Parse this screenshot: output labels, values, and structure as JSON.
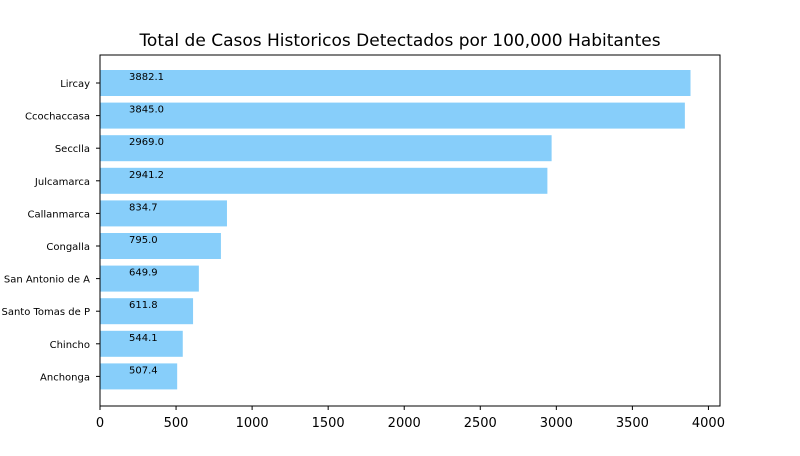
{
  "chart_data": {
    "type": "bar",
    "orientation": "horizontal",
    "title": "Total de Casos Historicos Detectados por 100,000 Habitantes",
    "xlabel": "",
    "ylabel": "",
    "categories": [
      "Lircay",
      "Ccochaccasa",
      "Secclla",
      "Julcamarca",
      "Callanmarca",
      "Congalla",
      "San Antonio de A",
      "Santo Tomas de P",
      "Chincho",
      "Anchonga"
    ],
    "values": [
      3882.1,
      3845.0,
      2969.0,
      2941.2,
      834.7,
      795.0,
      649.9,
      611.8,
      544.1,
      507.4
    ],
    "value_labels": [
      "3882.1",
      "3845.0",
      "2969.0",
      "2941.2",
      "834.7",
      "795.0",
      "649.9",
      "611.8",
      "544.1",
      "507.4"
    ],
    "xlim": [
      0,
      4076
    ],
    "xticks": [
      0,
      500,
      1000,
      1500,
      2000,
      2500,
      3000,
      3500,
      4000
    ],
    "xtick_labels": [
      "0",
      "500",
      "1000",
      "1500",
      "2000",
      "2500",
      "3000",
      "3500",
      "4000"
    ],
    "bar_color": "#87CEFA",
    "grid": false,
    "legend": "none"
  }
}
